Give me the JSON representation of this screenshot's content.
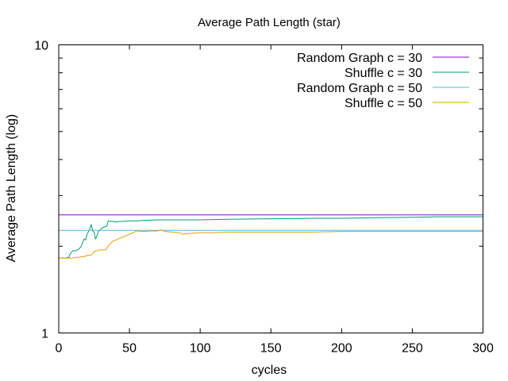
{
  "chart_data": {
    "type": "line",
    "title": "Average Path Length (star)",
    "xlabel": "cycles",
    "ylabel": "Average Path Length (log)",
    "xlim": [
      0,
      300
    ],
    "ylim": [
      1,
      10
    ],
    "yscale": "log",
    "x_ticks": [
      0,
      50,
      100,
      150,
      200,
      250,
      300
    ],
    "y_ticks": [
      1,
      10
    ],
    "grid": false,
    "legend_position": "top-right",
    "series": [
      {
        "name": "Random Graph c = 30",
        "color": "#9400d3",
        "x": [
          0,
          300
        ],
        "y": [
          2.57,
          2.57
        ]
      },
      {
        "name": "Shuffle c = 30",
        "color": "#009e73",
        "x": [
          0,
          4,
          5,
          6,
          7,
          8,
          10,
          12,
          14,
          16,
          17,
          18,
          19,
          20,
          21,
          22,
          23,
          24,
          25,
          26,
          27,
          28,
          30,
          32,
          34,
          35,
          36,
          38,
          40,
          45,
          50,
          55,
          60,
          70,
          80,
          90,
          100,
          120,
          150,
          180,
          200,
          220,
          250,
          270,
          300
        ],
        "y": [
          1.82,
          1.82,
          1.82,
          1.83,
          1.82,
          1.88,
          1.93,
          1.93,
          1.95,
          2.0,
          2.07,
          2.12,
          2.1,
          2.2,
          2.25,
          2.3,
          2.38,
          2.26,
          2.24,
          2.12,
          2.17,
          2.25,
          2.3,
          2.33,
          2.35,
          2.45,
          2.44,
          2.44,
          2.43,
          2.44,
          2.45,
          2.45,
          2.46,
          2.47,
          2.47,
          2.47,
          2.47,
          2.48,
          2.49,
          2.5,
          2.5,
          2.51,
          2.52,
          2.53,
          2.53
        ]
      },
      {
        "name": "Random Graph c = 50",
        "color": "#56b4e9",
        "x": [
          0,
          300
        ],
        "y": [
          2.27,
          2.27
        ]
      },
      {
        "name": "Shuffle c = 50",
        "color": "#e69f00",
        "x": [
          0,
          5,
          10,
          12,
          14,
          16,
          18,
          20,
          22,
          24,
          25,
          26,
          28,
          30,
          33,
          35,
          38,
          40,
          42,
          45,
          48,
          50,
          52,
          55,
          60,
          65,
          70,
          72,
          75,
          80,
          85,
          88,
          90,
          95,
          100,
          110,
          120,
          150,
          180,
          200,
          220,
          250,
          270,
          300
        ],
        "y": [
          1.82,
          1.82,
          1.82,
          1.83,
          1.83,
          1.84,
          1.84,
          1.86,
          1.86,
          1.88,
          1.92,
          1.92,
          1.94,
          1.94,
          1.94,
          2.0,
          2.08,
          2.1,
          2.12,
          2.15,
          2.18,
          2.2,
          2.22,
          2.26,
          2.25,
          2.26,
          2.26,
          2.28,
          2.25,
          2.24,
          2.23,
          2.2,
          2.21,
          2.22,
          2.23,
          2.23,
          2.24,
          2.24,
          2.24,
          2.25,
          2.25,
          2.25,
          2.25,
          2.25
        ]
      }
    ]
  }
}
